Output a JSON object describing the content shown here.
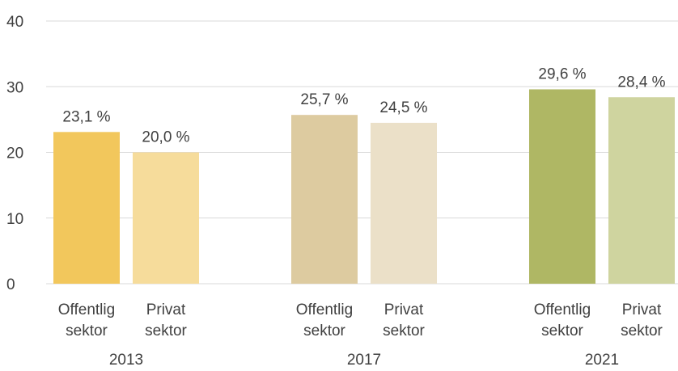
{
  "chart_data": {
    "type": "bar",
    "ylim": [
      0,
      40
    ],
    "yticks": [
      0,
      10,
      20,
      30,
      40
    ],
    "grid": true,
    "groups": [
      {
        "label": "2013",
        "bars": [
          {
            "label_lines": [
              "Offentlig",
              "sektor"
            ],
            "value": 23.1,
            "data_label": "23,1 %",
            "color": "#f2c75c"
          },
          {
            "label_lines": [
              "Privat",
              "sektor"
            ],
            "value": 20.0,
            "data_label": "20,0 %",
            "color": "#f6dc9b"
          }
        ]
      },
      {
        "label": "2017",
        "bars": [
          {
            "label_lines": [
              "Offentlig",
              "sektor"
            ],
            "value": 25.7,
            "data_label": "25,7 %",
            "color": "#ddcba0"
          },
          {
            "label_lines": [
              "Privat",
              "sektor"
            ],
            "value": 24.5,
            "data_label": "24,5 %",
            "color": "#ebe0c8"
          }
        ]
      },
      {
        "label": "2021",
        "bars": [
          {
            "label_lines": [
              "Offentlig",
              "sektor"
            ],
            "value": 29.6,
            "data_label": "29,6 %",
            "color": "#afb764"
          },
          {
            "label_lines": [
              "Privat",
              "sektor"
            ],
            "value": 28.4,
            "data_label": "28,4 %",
            "color": "#cfd49f"
          }
        ]
      }
    ]
  }
}
